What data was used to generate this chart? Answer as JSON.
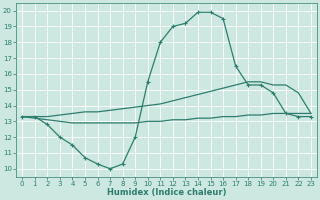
{
  "xlabel": "Humidex (Indice chaleur)",
  "bg_color": "#cce8e0",
  "grid_color": "#ffffff",
  "line_color": "#2e7d6e",
  "curve_wavy_x": [
    0,
    1,
    2,
    3,
    4,
    5,
    6,
    7,
    8,
    9,
    10,
    11,
    12,
    13,
    14,
    15,
    16,
    17,
    18,
    19,
    20,
    21,
    22,
    23
  ],
  "curve_wavy_y": [
    13.3,
    13.3,
    12.8,
    12.0,
    11.5,
    10.7,
    10.3,
    10.0,
    10.3,
    12.0,
    15.5,
    18.0,
    19.0,
    19.2,
    19.9,
    19.9,
    19.5,
    16.5,
    15.3,
    15.3,
    14.8,
    13.5,
    13.3,
    13.3
  ],
  "curve_upper_x": [
    0,
    1,
    2,
    3,
    4,
    5,
    6,
    7,
    8,
    9,
    10,
    11,
    12,
    13,
    14,
    15,
    16,
    17,
    18,
    19,
    20,
    21,
    22,
    23
  ],
  "curve_upper_y": [
    13.3,
    13.3,
    13.3,
    13.4,
    13.5,
    13.6,
    13.6,
    13.7,
    13.8,
    13.9,
    14.0,
    14.1,
    14.3,
    14.5,
    14.7,
    14.9,
    15.1,
    15.3,
    15.5,
    15.5,
    15.3,
    15.3,
    14.8,
    13.5
  ],
  "curve_lower_x": [
    0,
    1,
    2,
    3,
    4,
    5,
    6,
    7,
    8,
    9,
    10,
    11,
    12,
    13,
    14,
    15,
    16,
    17,
    18,
    19,
    20,
    21,
    22,
    23
  ],
  "curve_lower_y": [
    13.3,
    13.2,
    13.1,
    13.0,
    12.9,
    12.9,
    12.9,
    12.9,
    12.9,
    12.9,
    13.0,
    13.0,
    13.1,
    13.1,
    13.2,
    13.2,
    13.3,
    13.3,
    13.4,
    13.4,
    13.5,
    13.5,
    13.5,
    13.5
  ],
  "marker_wavy_x": [
    0,
    1,
    2,
    3,
    4,
    5,
    6,
    7,
    8,
    9,
    10,
    11,
    12,
    13,
    14,
    15,
    16,
    17,
    18,
    19,
    20,
    21,
    22,
    23
  ],
  "marker_wavy_y": [
    13.3,
    13.3,
    12.8,
    12.0,
    11.5,
    10.7,
    10.3,
    10.0,
    10.3,
    12.0,
    15.5,
    18.0,
    19.0,
    19.2,
    19.9,
    19.9,
    19.5,
    16.5,
    15.3,
    15.3,
    14.8,
    13.5,
    13.3,
    13.3
  ],
  "xlim": [
    -0.5,
    23.5
  ],
  "ylim": [
    9.5,
    20.5
  ],
  "yticks": [
    10,
    11,
    12,
    13,
    14,
    15,
    16,
    17,
    18,
    19,
    20
  ],
  "xticks": [
    0,
    1,
    2,
    3,
    4,
    5,
    6,
    7,
    8,
    9,
    10,
    11,
    12,
    13,
    14,
    15,
    16,
    17,
    18,
    19,
    20,
    21,
    22,
    23
  ],
  "tick_fontsize": 5,
  "xlabel_fontsize": 6,
  "linewidth": 0.9,
  "markersize": 3.0
}
